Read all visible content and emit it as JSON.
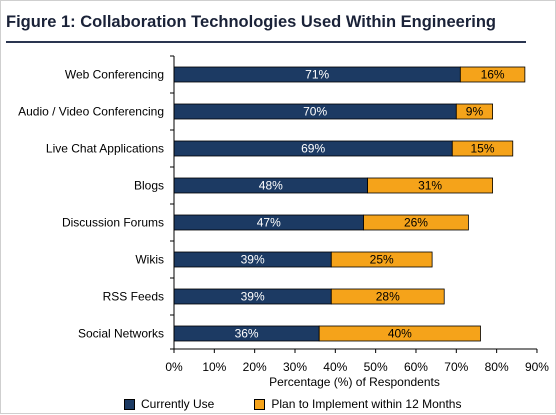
{
  "title": "Figure 1: Collaboration Technologies Used Within Engineering",
  "colors": {
    "current": "#1c3a63",
    "plan": "#f5a31a"
  },
  "chart_data": {
    "type": "bar",
    "orientation": "horizontal",
    "stacked": true,
    "categories": [
      "Web Conferencing",
      "Audio / Video Conferencing",
      "Live Chat Applications",
      "Blogs",
      "Discussion Forums",
      "Wikis",
      "RSS Feeds",
      "Social Networks"
    ],
    "series": [
      {
        "name": "Currently Use",
        "values": [
          71,
          70,
          69,
          48,
          47,
          39,
          39,
          36
        ]
      },
      {
        "name": "Plan to Implement within 12 Months",
        "values": [
          16,
          9,
          15,
          31,
          26,
          25,
          28,
          40
        ]
      }
    ],
    "xlabel": "Percentage (%) of Respondents",
    "ylabel": "",
    "xlim": [
      0,
      90
    ],
    "xticks": [
      "0%",
      "10%",
      "20%",
      "30%",
      "40%",
      "50%",
      "60%",
      "70%",
      "80%",
      "90%"
    ],
    "legend_position": "bottom",
    "grid": false
  },
  "legend": {
    "current": "Currently Use",
    "plan": "Plan to Implement within 12 Months"
  }
}
